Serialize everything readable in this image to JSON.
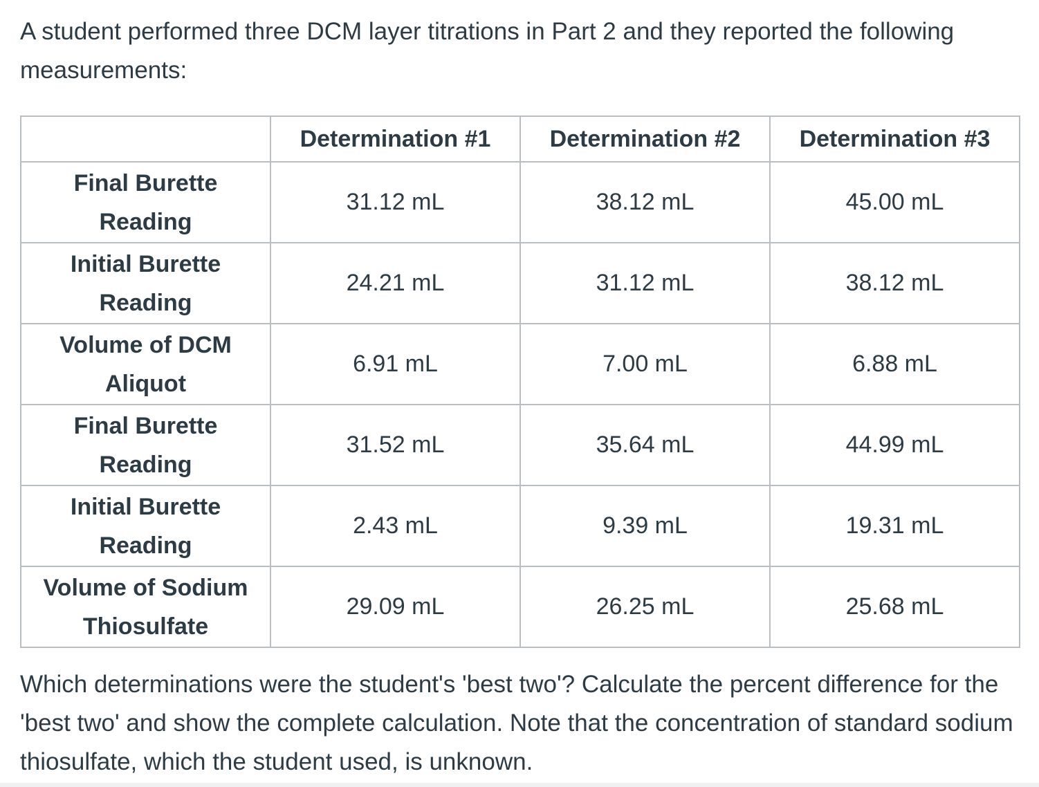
{
  "intro_text": "A student performed three DCM layer titrations in Part 2 and they reported the following measurements:",
  "table": {
    "corner": "",
    "headers": [
      "Determination #1",
      "Determination #2",
      "Determination #3"
    ],
    "rows": [
      {
        "label": "Final Burette Reading",
        "values": [
          "31.12 mL",
          "38.12 mL",
          "45.00 mL"
        ]
      },
      {
        "label": "Initial Burette Reading",
        "values": [
          "24.21 mL",
          "31.12 mL",
          "38.12 mL"
        ]
      },
      {
        "label": "Volume of DCM Aliquot",
        "values": [
          "6.91 mL",
          "7.00 mL",
          "6.88 mL"
        ]
      },
      {
        "label": "Final Burette Reading",
        "values": [
          "31.52 mL",
          "35.64 mL",
          "44.99 mL"
        ]
      },
      {
        "label": "Initial Burette Reading",
        "values": [
          "2.43 mL",
          "9.39 mL",
          "19.31 mL"
        ]
      },
      {
        "label": "Volume of Sodium Thiosulfate",
        "values": [
          "29.09 mL",
          "26.25 mL",
          "25.68 mL"
        ]
      }
    ]
  },
  "question_text": "Which determinations were the student's 'best two'? Calculate the percent difference for the 'best two' and show the complete calculation. Note that the concentration of standard sodium thiosulfate, which the student used, is unknown."
}
